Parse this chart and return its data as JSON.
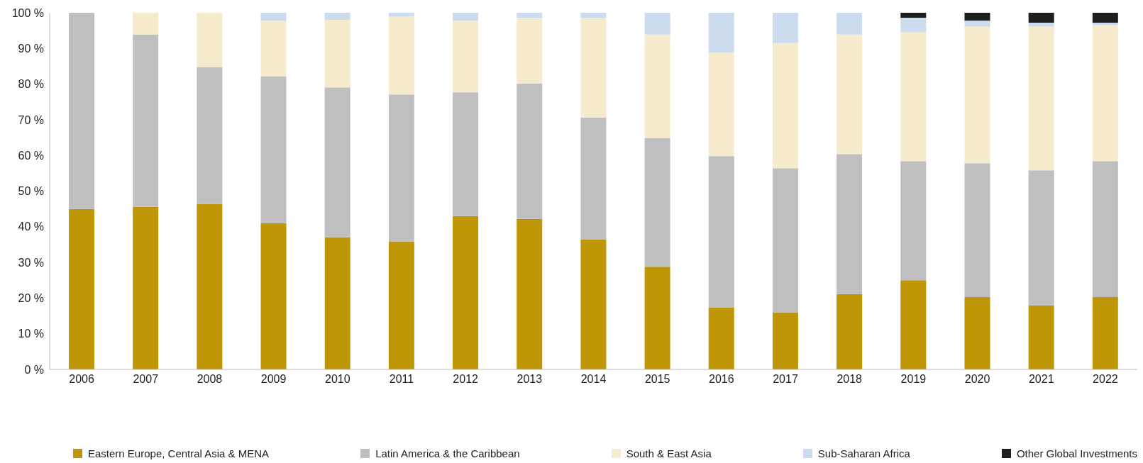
{
  "chart_data": {
    "type": "bar",
    "stacked": true,
    "categories": [
      "2006",
      "2007",
      "2008",
      "2009",
      "2010",
      "2011",
      "2012",
      "2013",
      "2014",
      "2015",
      "2016",
      "2017",
      "2018",
      "2019",
      "2020",
      "2021",
      "2022"
    ],
    "series": [
      {
        "name": "Eastern Europe, Central Asia & MENA",
        "color": "#bf9605",
        "values": [
          45,
          45.6,
          46.4,
          41,
          37.1,
          35.9,
          43,
          42.2,
          36.5,
          28.8,
          17.4,
          16,
          21.1,
          25,
          20.3,
          17.9,
          20.3
        ]
      },
      {
        "name": "Latin America & the Caribbean",
        "color": "#bfbfbf",
        "values": [
          55,
          48.3,
          38.4,
          41.2,
          42,
          41.2,
          34.7,
          37.9,
          34.1,
          36.1,
          42.4,
          40.4,
          39.3,
          33.4,
          37.5,
          37.9,
          38.1
        ]
      },
      {
        "name": "South & East Asia",
        "color": "#f6ebcd",
        "values": [
          0,
          6.1,
          15.2,
          15.6,
          18.9,
          21.9,
          20.1,
          18.5,
          28,
          29,
          29,
          35.1,
          33.5,
          36.1,
          38.3,
          40.3,
          38.1
        ]
      },
      {
        "name": "Sub-Saharan Africa",
        "color": "#ccdcee",
        "values": [
          0,
          0,
          0,
          2.2,
          2,
          1,
          2.2,
          1.4,
          1.4,
          6.1,
          11.2,
          8.5,
          6.1,
          4.1,
          1.7,
          1.1,
          0.7
        ]
      },
      {
        "name": "Other Global Investments",
        "color": "#1e1e1e",
        "values": [
          0,
          0,
          0,
          0,
          0,
          0,
          0,
          0,
          0,
          0,
          0,
          0,
          0,
          1.4,
          2.2,
          2.8,
          2.8
        ]
      }
    ],
    "ylim": [
      0,
      100
    ],
    "yticks": [
      {
        "value": 0,
        "label": "0 %"
      },
      {
        "value": 10,
        "label": "10 %"
      },
      {
        "value": 20,
        "label": "20 %"
      },
      {
        "value": 30,
        "label": "30 %"
      },
      {
        "value": 40,
        "label": "40 %"
      },
      {
        "value": 50,
        "label": "50 %"
      },
      {
        "value": 60,
        "label": "60 %"
      },
      {
        "value": 70,
        "label": "70 %"
      },
      {
        "value": 80,
        "label": "80 %"
      },
      {
        "value": 90,
        "label": "90 %"
      },
      {
        "value": 100,
        "label": "100 %"
      }
    ],
    "grid": false,
    "legend": "bottom"
  }
}
